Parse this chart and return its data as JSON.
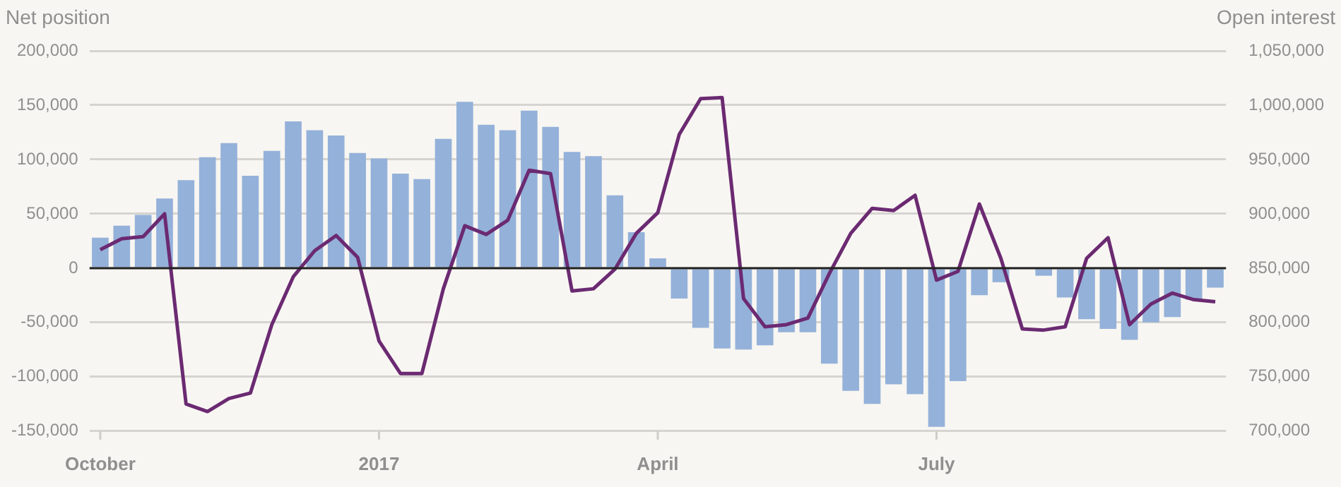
{
  "chart_data": {
    "type": "bar",
    "ylabel": "Net position",
    "y2label": "Open interest",
    "categories": [
      "October",
      null,
      null,
      null,
      null,
      null,
      null,
      null,
      null,
      null,
      null,
      null,
      null,
      "2017",
      null,
      null,
      null,
      null,
      null,
      null,
      null,
      null,
      null,
      null,
      null,
      null,
      "April",
      null,
      null,
      null,
      null,
      null,
      null,
      null,
      null,
      null,
      null,
      null,
      null,
      "July",
      null,
      null,
      null,
      null,
      null,
      null,
      null,
      null,
      null,
      null,
      null,
      null,
      null
    ],
    "series": [
      {
        "color": "#94b1d9",
        "values": [
          28000,
          39000,
          49000,
          64000,
          81000,
          102000,
          115000,
          85000,
          108000,
          135000,
          127000,
          122000,
          106000,
          101000,
          87000,
          82000,
          119000,
          153000,
          132000,
          127000,
          145000,
          130000,
          107000,
          103000,
          67000,
          33000,
          9000,
          -28000,
          -55000,
          -74000,
          -75000,
          -71000,
          -59000,
          -59000,
          -88000,
          -113000,
          -125000,
          -107000,
          -116000,
          -146000,
          -104000,
          -25000,
          -13000,
          null,
          -7000,
          -27000,
          -47000,
          -56000,
          -66000,
          -50000,
          -45000,
          -29000,
          -18000
        ]
      },
      {
        "type": "line",
        "axis": "y2",
        "color": "#6b2a72",
        "values": [
          867000,
          877000,
          879000,
          900000,
          725000,
          718000,
          730000,
          735000,
          798000,
          842000,
          866000,
          880000,
          860000,
          783000,
          753000,
          753000,
          831000,
          889000,
          881000,
          894000,
          940000,
          937000,
          829000,
          831000,
          849000,
          882000,
          901000,
          973000,
          1006000,
          1007000,
          822000,
          796000,
          798000,
          804000,
          845000,
          882000,
          905000,
          903000,
          917000,
          839000,
          847000,
          909000,
          859000,
          794000,
          793000,
          796000,
          859000,
          878000,
          798000,
          817000,
          827000,
          821000,
          819000
        ]
      }
    ],
    "ylim": [
      -150000,
      200000
    ],
    "yticks": [
      {
        "value": -150000,
        "label": "-150,000"
      },
      {
        "value": -100000,
        "label": "-100,000"
      },
      {
        "value": -50000,
        "label": "-50,000"
      },
      0,
      {
        "value": 50000,
        "label": "50,000"
      },
      {
        "value": 100000,
        "label": "100,000"
      },
      {
        "value": 150000,
        "label": "150,000"
      },
      {
        "value": 200000,
        "label": "200,000"
      }
    ],
    "y2lim": [
      700000,
      1050000
    ],
    "y2ticks": [
      {
        "value": 700000,
        "label": "700,000"
      },
      {
        "value": 750000,
        "label": "750,000"
      },
      {
        "value": 800000,
        "label": "800,000"
      },
      {
        "value": 850000,
        "label": "850,000"
      },
      {
        "value": 900000,
        "label": "900,000"
      },
      {
        "value": 950000,
        "label": "950,000"
      },
      {
        "value": 1000000,
        "label": "1,000,000"
      },
      {
        "value": 1050000,
        "label": "1,050,000"
      }
    ],
    "ref_lines": [
      {
        "axis": "y",
        "value": 0,
        "color": "#222222"
      }
    ],
    "grid": "y",
    "legend": false,
    "marker": "none",
    "line_style": "solid"
  }
}
